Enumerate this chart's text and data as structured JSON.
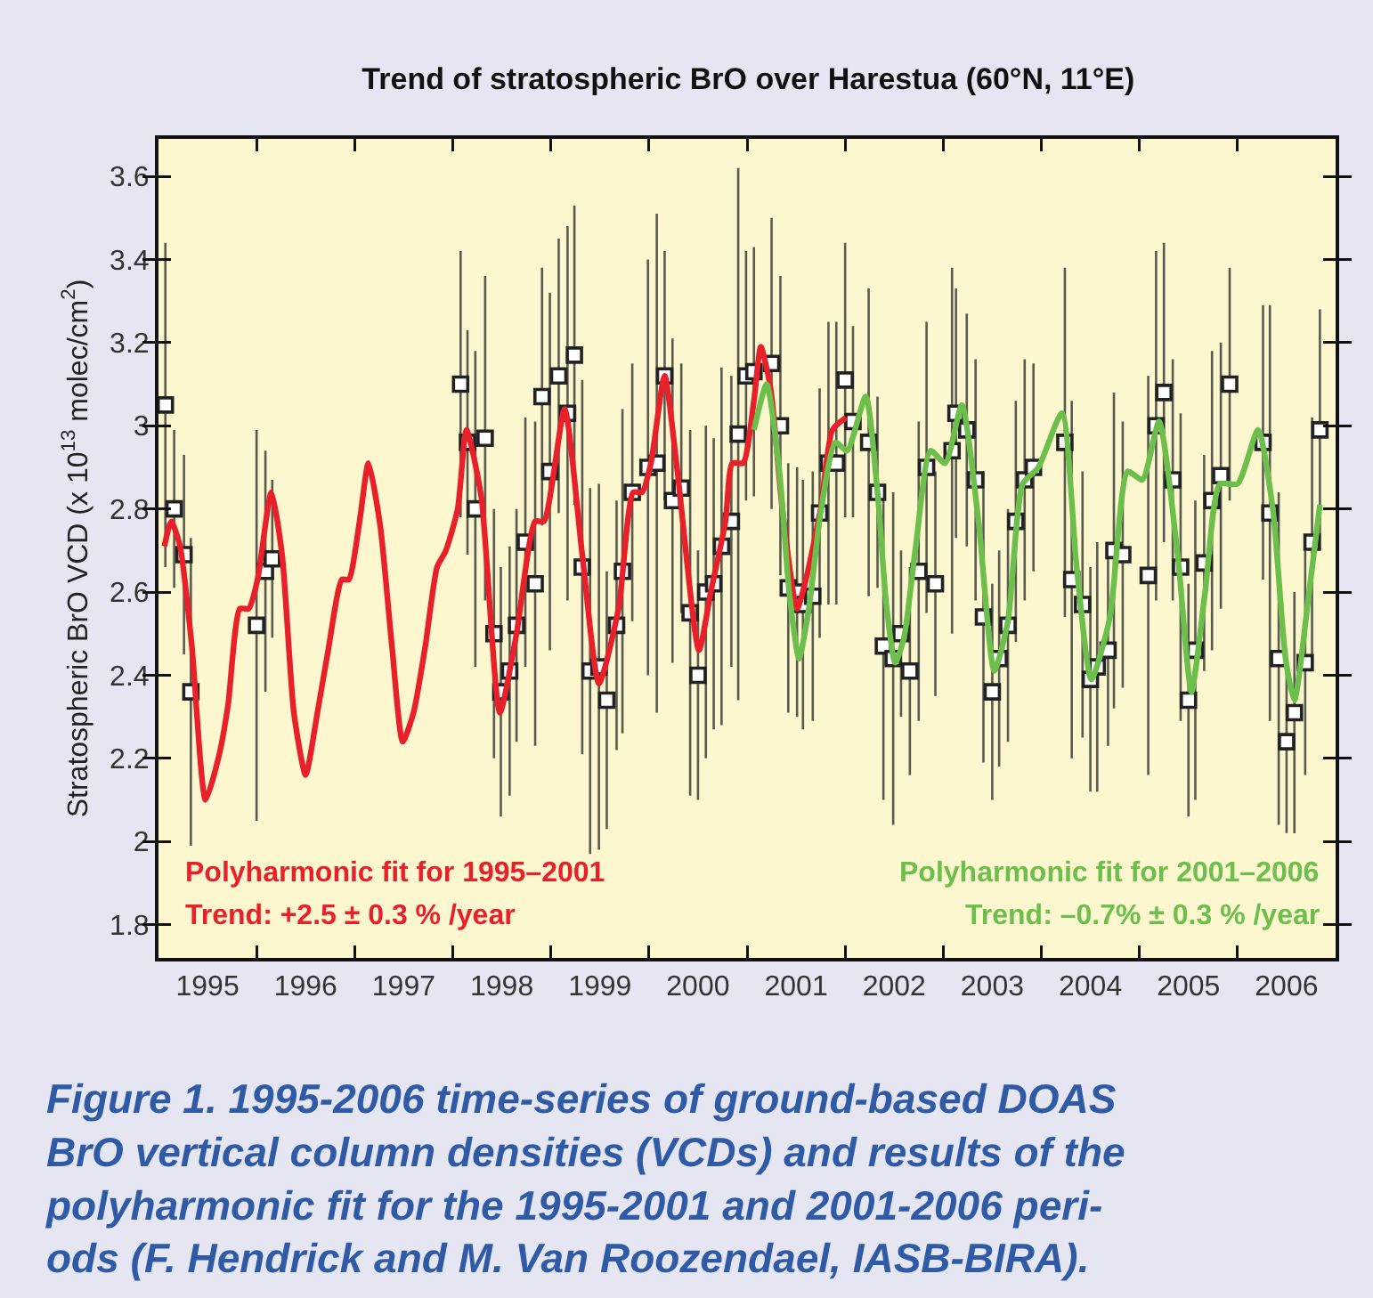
{
  "chart_data": {
    "type": "scatter",
    "title": "Trend of stratospheric BrO over Harestua (60°N, 11°E)",
    "ylabel": "Stratospheric BrO VCD (x 10$^{13}$ molec/cm$^{2}$)",
    "xlim": [
      1995,
      2007
    ],
    "xticks": [
      {
        "value": 1995.5,
        "label": "1995"
      },
      {
        "value": 1996,
        "label": null
      },
      {
        "value": 1996.5,
        "label": "1996"
      },
      {
        "value": 1997,
        "label": null
      },
      {
        "value": 1997.5,
        "label": "1997"
      },
      {
        "value": 1998,
        "label": null
      },
      {
        "value": 1998.5,
        "label": "1998"
      },
      {
        "value": 1999,
        "label": null
      },
      {
        "value": 1999.5,
        "label": "1999"
      },
      {
        "value": 2000,
        "label": null
      },
      {
        "value": 2000.5,
        "label": "2000"
      },
      {
        "value": 2001,
        "label": null
      },
      {
        "value": 2001.5,
        "label": "2001"
      },
      {
        "value": 2002,
        "label": null
      },
      {
        "value": 2002.5,
        "label": "2002"
      },
      {
        "value": 2003,
        "label": null
      },
      {
        "value": 2003.5,
        "label": "2003"
      },
      {
        "value": 2004,
        "label": null
      },
      {
        "value": 2004.5,
        "label": "2004"
      },
      {
        "value": 2005,
        "label": null
      },
      {
        "value": 2005.5,
        "label": "2005"
      },
      {
        "value": 2006,
        "label": null
      },
      {
        "value": 2006.5,
        "label": "2006"
      }
    ],
    "ylim": [
      1.72,
      3.69
    ],
    "yticks": [
      1.8,
      2,
      2.2,
      2.4,
      2.6,
      2.8,
      3,
      3.2,
      3.4,
      3.6
    ],
    "grid": false,
    "legend": false,
    "series": [
      {
        "marker": "square",
        "color": "#ffffff",
        "x": [
          1995.07,
          1995.16,
          1995.26,
          1995.33,
          1996.0,
          1996.09,
          1996.16,
          1998.08,
          1998.15,
          1998.23,
          1998.33,
          1998.42,
          1998.49,
          1998.58,
          1998.65,
          1998.74,
          1998.84,
          1998.91,
          1998.99,
          1999.08,
          1999.17,
          1999.24,
          1999.32,
          1999.4,
          1999.49,
          1999.57,
          1999.67,
          1999.73,
          1999.83,
          1999.99,
          2000.08,
          2000.16,
          2000.24,
          2000.33,
          2000.42,
          2000.5,
          2000.58,
          2000.66,
          2000.74,
          2000.84,
          2000.91,
          2000.99,
          2001.07,
          2001.25,
          2001.34,
          2001.42,
          2001.51,
          2001.57,
          2001.67,
          2001.74,
          2001.83,
          2001.91,
          2002.0,
          2002.08,
          2002.24,
          2002.33,
          2002.39,
          2002.49,
          2002.57,
          2002.66,
          2002.75,
          2002.83,
          2002.92,
          2003.09,
          2003.13,
          2003.24,
          2003.33,
          2003.41,
          2003.5,
          2003.57,
          2003.66,
          2003.74,
          2003.83,
          2003.92,
          2004.24,
          2004.31,
          2004.42,
          2004.5,
          2004.57,
          2004.68,
          2004.74,
          2004.83,
          2005.09,
          2005.17,
          2005.25,
          2005.34,
          2005.42,
          2005.5,
          2005.57,
          2005.66,
          2005.74,
          2005.83,
          2005.92,
          2006.26,
          2006.33,
          2006.42,
          2006.5,
          2006.58,
          2006.69,
          2006.76,
          2006.84
        ],
        "values": [
          3.05,
          2.8,
          2.69,
          2.36,
          2.52,
          2.65,
          2.68,
          3.1,
          2.96,
          2.8,
          2.97,
          2.5,
          2.36,
          2.41,
          2.52,
          2.72,
          2.62,
          3.07,
          2.89,
          3.12,
          3.03,
          3.17,
          2.66,
          2.41,
          2.42,
          2.34,
          2.52,
          2.65,
          2.84,
          2.9,
          2.91,
          3.12,
          2.82,
          2.85,
          2.55,
          2.4,
          2.6,
          2.62,
          2.71,
          2.77,
          2.98,
          3.12,
          3.13,
          3.15,
          3.0,
          2.61,
          2.6,
          2.57,
          2.59,
          2.79,
          2.91,
          2.91,
          3.11,
          3.01,
          2.96,
          2.84,
          2.47,
          2.44,
          2.5,
          2.41,
          2.65,
          2.9,
          2.62,
          2.94,
          3.03,
          2.99,
          2.87,
          2.54,
          2.36,
          2.44,
          2.52,
          2.77,
          2.87,
          2.9,
          2.96,
          2.63,
          2.57,
          2.39,
          2.42,
          2.46,
          2.7,
          2.69,
          2.64,
          3.0,
          3.08,
          2.87,
          2.66,
          2.34,
          2.46,
          2.67,
          2.82,
          2.88,
          3.1,
          2.96,
          2.79,
          2.44,
          2.24,
          2.31,
          2.43,
          2.72,
          2.99
        ],
        "errors": [
          0.39,
          0.19,
          0.24,
          0.37,
          0.47,
          0.29,
          0.19,
          0.32,
          0.27,
          0.38,
          0.39,
          0.3,
          0.3,
          0.3,
          0.28,
          0.3,
          0.39,
          0.31,
          0.43,
          0.33,
          0.45,
          0.36,
          0.45,
          0.44,
          0.44,
          0.31,
          0.3,
          0.39,
          0.31,
          0.5,
          0.6,
          0.3,
          0.39,
          0.3,
          0.44,
          0.3,
          0.4,
          0.35,
          0.43,
          0.35,
          0.64,
          0.3,
          0.3,
          0.35,
          0.36,
          0.3,
          0.3,
          0.3,
          0.3,
          0.3,
          0.34,
          0.34,
          0.33,
          0.23,
          0.37,
          0.23,
          0.37,
          0.4,
          0.2,
          0.25,
          0.36,
          0.35,
          0.27,
          0.44,
          0.3,
          0.28,
          0.29,
          0.35,
          0.26,
          0.26,
          0.28,
          0.29,
          0.29,
          0.25,
          0.42,
          0.43,
          0.32,
          0.27,
          0.3,
          0.23,
          0.38,
          0.32,
          0.48,
          0.42,
          0.36,
          0.29,
          0.37,
          0.28,
          0.36,
          0.26,
          0.36,
          0.32,
          0.28,
          0.33,
          0.5,
          0.4,
          0.22,
          0.29,
          0.27,
          0.3,
          0.29
        ]
      },
      {
        "type": "line",
        "marker": "none",
        "line_style": "solid",
        "name": "Polyharmonic fit for 1995–2001",
        "color": "#e8202a",
        "x": [
          1995.06,
          1995.13,
          1995.22,
          1995.34,
          1995.48,
          1995.62,
          1995.71,
          1995.83,
          1995.92,
          1996.01,
          1996.15,
          1996.26,
          1996.38,
          1996.5,
          1996.62,
          1996.73,
          1996.87,
          1996.94,
          1997.05,
          1997.14,
          1997.26,
          1997.38,
          1997.49,
          1997.6,
          1997.72,
          1997.84,
          1997.93,
          1998.05,
          1998.14,
          1998.29,
          1998.48,
          1998.65,
          1998.84,
          1998.93,
          1999.14,
          1999.32,
          1999.49,
          1999.69,
          1999.84,
          1999.93,
          2000.02,
          2000.16,
          2000.29,
          2000.51,
          2000.63,
          2000.78,
          2000.85,
          2000.96,
          2001.07,
          2001.14,
          2001.24,
          2001.36,
          2001.51,
          2001.6,
          2001.75,
          2001.87,
          2002.01
        ],
        "values": [
          2.71,
          2.77,
          2.71,
          2.47,
          2.1,
          2.21,
          2.33,
          2.56,
          2.56,
          2.63,
          2.84,
          2.69,
          2.31,
          2.16,
          2.31,
          2.46,
          2.63,
          2.63,
          2.77,
          2.91,
          2.76,
          2.47,
          2.24,
          2.31,
          2.47,
          2.66,
          2.7,
          2.8,
          2.99,
          2.83,
          2.31,
          2.5,
          2.77,
          2.77,
          3.04,
          2.69,
          2.38,
          2.56,
          2.84,
          2.84,
          2.91,
          3.12,
          2.89,
          2.46,
          2.6,
          2.77,
          2.91,
          2.91,
          3.06,
          3.19,
          3.09,
          2.8,
          2.56,
          2.63,
          2.8,
          2.99,
          3.02
        ]
      },
      {
        "type": "line",
        "marker": "none",
        "line_style": "solid",
        "name": "Polyharmonic fit for 2001–2006",
        "color": "#6cbf4a",
        "x": [
          2001.07,
          2001.2,
          2001.33,
          2001.43,
          2001.53,
          2001.63,
          2001.75,
          2001.9,
          2002.02,
          2002.21,
          2002.33,
          2002.42,
          2002.51,
          2002.6,
          2002.72,
          2002.87,
          2003.02,
          2003.19,
          2003.36,
          2003.52,
          2003.66,
          2003.81,
          2003.97,
          2004.21,
          2004.36,
          2004.51,
          2004.7,
          2004.88,
          2005.03,
          2005.2,
          2005.39,
          2005.53,
          2005.67,
          2005.82,
          2006.0,
          2006.21,
          2006.36,
          2006.49,
          2006.58,
          2006.73,
          2006.84
        ],
        "values": [
          2.99,
          3.1,
          2.89,
          2.6,
          2.44,
          2.56,
          2.79,
          2.96,
          2.94,
          3.07,
          2.84,
          2.57,
          2.43,
          2.49,
          2.71,
          2.94,
          2.91,
          3.05,
          2.77,
          2.41,
          2.53,
          2.86,
          2.9,
          3.03,
          2.66,
          2.39,
          2.54,
          2.89,
          2.87,
          3.01,
          2.69,
          2.36,
          2.6,
          2.86,
          2.86,
          2.99,
          2.8,
          2.44,
          2.34,
          2.6,
          2.81
        ]
      }
    ],
    "annotations": [
      "Trend: +2.5 ± 0.3 % /year",
      "Trend: –0.7% ± 0.3 % /year",
      "Figure 1. 1995-2006 time-series of ground-based DOAS\nBrO vertical column densities (VCDs) and results of the\npolyharmonic fit for the 1995-2001 and 2001-2006 peri-\nods (F. Hendrick and M. Van Roozendael, IASB-BIRA)."
    ]
  }
}
